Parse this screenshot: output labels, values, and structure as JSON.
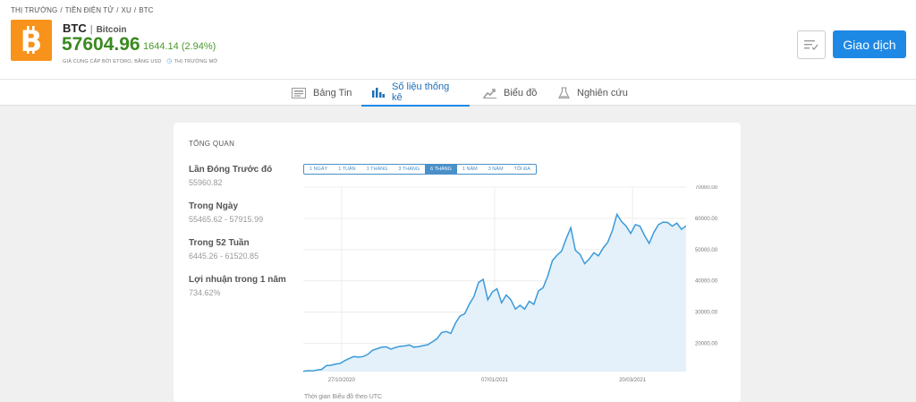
{
  "breadcrumb": [
    "THỊ TRƯỜNG",
    "/",
    "TIỀN ĐIỆN TỬ",
    "/",
    "XU",
    "/",
    "BTC"
  ],
  "header": {
    "ticker": "BTC",
    "separator": "|",
    "name": "Bitcoin",
    "price": "57604.96",
    "change": "1644.14 (2.94%)",
    "provider": "GIÁ CUNG CẤP BỞI ETORO, BẰNG USD",
    "market_status": "THỊ TRƯỜNG MỞ",
    "logo_icon": "bitcoin-icon",
    "brand_color": "#f7931a"
  },
  "actions": {
    "trade_label": "Giao dịch",
    "watch_icon": "watchlist-icon"
  },
  "tabs": [
    {
      "label": "Bảng Tin",
      "icon": "news-icon"
    },
    {
      "label": "Số liệu thống kê",
      "icon": "stats-icon",
      "active": true
    },
    {
      "label": "Biểu đồ",
      "icon": "chart-icon"
    },
    {
      "label": "Nghiên cứu",
      "icon": "research-icon"
    }
  ],
  "overview": {
    "title": "TỔNG QUAN",
    "stats": [
      {
        "label": "Lần Đóng Trước đó",
        "value": "55960.82"
      },
      {
        "label": "Trong Ngày",
        "value": "55465.62 - 57915.99"
      },
      {
        "label": "Trong 52 Tuần",
        "value": "6445.26 - 61520.85"
      },
      {
        "label": "Lợi nhuận trong 1 năm",
        "value": "734.62%"
      }
    ],
    "ranges": [
      "1 NGÀY",
      "1 TUẦN",
      "1 THÁNG",
      "3 THÁNG",
      "6 THÁNG",
      "1 NĂM",
      "3 NĂM",
      "TỐI ĐA"
    ],
    "active_range": "6 THÁNG",
    "utc_note": "Thời gian Biểu đồ theo UTC"
  },
  "chart_data": {
    "type": "area",
    "x_tick_labels": [
      "27/10/2020",
      "07/01/2021",
      "20/03/2021"
    ],
    "y_tick_labels": [
      "70000.00",
      "60000.00",
      "50000.00",
      "40000.00",
      "30000.00",
      "20000.00"
    ],
    "y_ticks": [
      70000,
      60000,
      50000,
      40000,
      30000,
      20000
    ],
    "ylim": [
      11000,
      70000
    ],
    "line_color": "#3a9ad9",
    "fill_color": "#e4f1fa",
    "values": [
      11100,
      11300,
      11200,
      11500,
      11700,
      12900,
      13000,
      13400,
      13600,
      14500,
      15200,
      15800,
      15600,
      15800,
      16500,
      17800,
      18300,
      18800,
      18900,
      18200,
      18700,
      19100,
      19200,
      19500,
      18800,
      19000,
      19300,
      19600,
      20500,
      21500,
      23500,
      23800,
      23200,
      26500,
      28800,
      29500,
      32500,
      35000,
      39500,
      40500,
      34000,
      36500,
      37500,
      33000,
      35500,
      34000,
      31000,
      32200,
      31000,
      33500,
      32500,
      36800,
      37800,
      41500,
      46500,
      48200,
      49500,
      53500,
      57000,
      49800,
      48500,
      45500,
      47000,
      49000,
      48000,
      50500,
      52300,
      56000,
      61300,
      59000,
      57500,
      55200,
      58000,
      57500,
      54500,
      52000,
      55500,
      58000,
      58800,
      58700,
      57500,
      58500,
      56500,
      57600
    ]
  }
}
